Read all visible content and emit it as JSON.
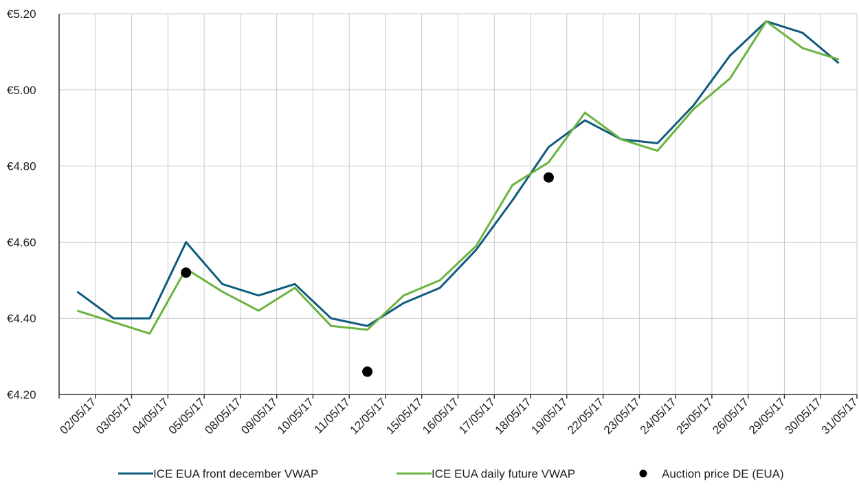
{
  "chart_data": {
    "type": "line",
    "title": "",
    "xlabel": "",
    "ylabel": "",
    "categories": [
      "02/05/17",
      "03/05/17",
      "04/05/17",
      "05/05/17",
      "08/05/17",
      "09/05/17",
      "10/05/17",
      "11/05/17",
      "12/05/17",
      "15/05/17",
      "16/05/17",
      "17/05/17",
      "18/05/17",
      "19/05/17",
      "22/05/17",
      "23/05/17",
      "24/05/17",
      "25/05/17",
      "26/05/17",
      "29/05/17",
      "30/05/17",
      "31/05/17"
    ],
    "y_ticks": [
      "€4.20",
      "€4.40",
      "€4.60",
      "€4.80",
      "€5.00",
      "€5.20"
    ],
    "ylim": [
      4.2,
      5.2
    ],
    "grid": true,
    "legend_position": "bottom",
    "series": [
      {
        "name": "ICE EUA front december VWAP",
        "kind": "line",
        "color": "#0f5a7e",
        "values": [
          4.47,
          4.4,
          4.4,
          4.6,
          4.49,
          4.46,
          4.49,
          4.4,
          4.38,
          4.44,
          4.48,
          4.58,
          4.71,
          4.85,
          4.92,
          4.87,
          4.86,
          4.96,
          5.09,
          5.18,
          5.15,
          5.07
        ]
      },
      {
        "name": "ICE EUA daily future VWAP",
        "kind": "line",
        "color": "#6bb33f",
        "values": [
          4.42,
          4.39,
          4.36,
          4.53,
          4.47,
          4.42,
          4.48,
          4.38,
          4.37,
          4.46,
          4.5,
          4.59,
          4.75,
          4.81,
          4.94,
          4.87,
          4.84,
          4.95,
          5.03,
          5.18,
          5.11,
          5.08
        ]
      },
      {
        "name": "Auction price DE (EUA)",
        "kind": "scatter",
        "color": "#000000",
        "points": [
          {
            "category": "05/05/17",
            "value": 4.52
          },
          {
            "category": "12/05/17",
            "value": 4.26
          },
          {
            "category": "19/05/17",
            "value": 4.77
          }
        ]
      }
    ]
  }
}
